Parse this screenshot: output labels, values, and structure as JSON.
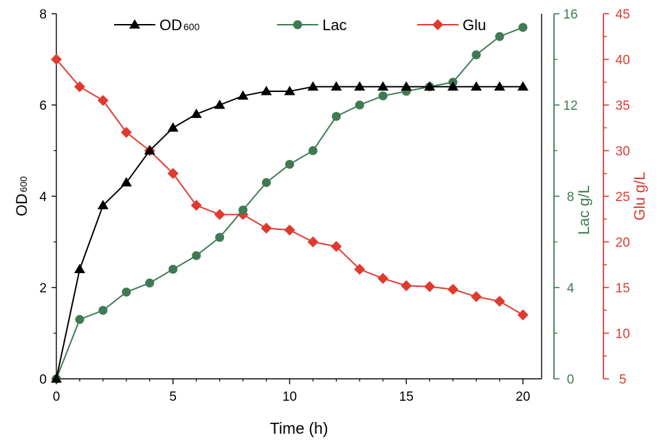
{
  "chart_data": {
    "type": "line",
    "xlabel": "Time (h)",
    "x_ticks": [
      "0",
      "5",
      "10",
      "15",
      "20"
    ],
    "xlim": [
      0,
      20.8
    ],
    "colors": {
      "od": "#000000",
      "lac": "#3f7a53",
      "glu": "#e03a2f"
    },
    "axes": {
      "left": {
        "label_main": "OD",
        "label_sub": "600",
        "ylim": [
          0,
          8
        ],
        "ticks": [
          "0",
          "2",
          "4",
          "6",
          "8"
        ]
      },
      "right1": {
        "label": "Lac g/L",
        "ylim": [
          0,
          16
        ],
        "ticks": [
          "0",
          "4",
          "8",
          "12",
          "16"
        ]
      },
      "right2": {
        "label": "Glu g/L",
        "ylim": [
          5,
          45
        ],
        "ticks": [
          "5",
          "10",
          "15",
          "20",
          "25",
          "30",
          "35",
          "40",
          "45"
        ]
      }
    },
    "legend": [
      {
        "main": "OD",
        "sub": "600"
      },
      {
        "main": "Lac",
        "sub": ""
      },
      {
        "main": "Glu",
        "sub": ""
      }
    ],
    "x": [
      0,
      1,
      2,
      3,
      4,
      5,
      6,
      7,
      8,
      9,
      10,
      11,
      12,
      13,
      14,
      15,
      16,
      17,
      18,
      19,
      20
    ],
    "series": [
      {
        "name": "OD600",
        "axis": "left",
        "marker": "triangle",
        "values": [
          0,
          2.4,
          3.8,
          4.3,
          5.0,
          5.5,
          5.8,
          6.0,
          6.2,
          6.3,
          6.3,
          6.4,
          6.4,
          6.4,
          6.4,
          6.4,
          6.4,
          6.4,
          6.4,
          6.4,
          6.4
        ]
      },
      {
        "name": "Lac",
        "axis": "right1",
        "marker": "circle",
        "values": [
          0,
          2.6,
          3.0,
          3.8,
          4.2,
          4.8,
          5.4,
          6.2,
          7.4,
          8.6,
          9.4,
          10.0,
          11.5,
          12.0,
          12.4,
          12.6,
          12.8,
          13.0,
          14.2,
          15.0,
          15.4
        ]
      },
      {
        "name": "Glu",
        "axis": "right2",
        "marker": "diamond",
        "values": [
          40,
          37,
          35.5,
          32,
          30,
          27.5,
          24,
          23,
          23,
          21.5,
          21.3,
          20,
          19.5,
          17,
          16,
          15.2,
          15.1,
          14.8,
          14,
          13.5,
          12
        ]
      }
    ]
  }
}
